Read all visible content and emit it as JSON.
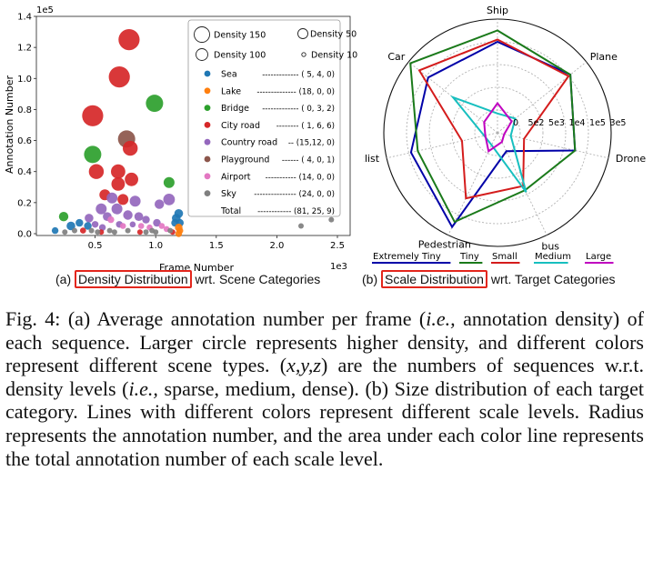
{
  "left_chart": {
    "exponent_y": "1e5",
    "exponent_x": "1e3",
    "xlabel": "Frame Number",
    "ylabel": "Annotation Number",
    "x_ticks": [
      "0.5",
      "1.0",
      "1.5",
      "2.0",
      "2.5"
    ],
    "y_ticks": [
      "0.0",
      "0.2",
      "0.4",
      "0.6",
      "0.8",
      "1.0",
      "1.2",
      "1.4"
    ],
    "size_legend": [
      "Density 150",
      "Density 50",
      "Density 100",
      "Density 10"
    ],
    "categories": [
      {
        "name": "Sea",
        "counts": "------------- ( 5,  4,  0)",
        "color": "#1f77b4"
      },
      {
        "name": "Lake",
        "counts": "-------------- (18,  0,  0)",
        "color": "#ff7f0e"
      },
      {
        "name": "Bridge",
        "counts": "------------- ( 0,  3,  2)",
        "color": "#2ca02c"
      },
      {
        "name": "City road",
        "counts": "-------- ( 1,  6,  6)",
        "color": "#d62728"
      },
      {
        "name": "Country road",
        "counts": "-- (15,12,  0)",
        "color": "#9467bd"
      },
      {
        "name": "Playground",
        "counts": "------ ( 4,  0,  1)",
        "color": "#8c564b"
      },
      {
        "name": "Airport",
        "counts": "----------- (14,  0,  0)",
        "color": "#e377c2"
      },
      {
        "name": "Sky",
        "counts": "--------------- (24,  0,  0)",
        "color": "#7f7f7f"
      },
      {
        "name": "Total",
        "counts": "------------ (81, 25,  9)",
        "color": ""
      }
    ],
    "subcaption_prefix": "(a)",
    "subcaption_boxed": "Density Distribution",
    "subcaption_suffix": "wrt. Scene Categories"
  },
  "chart_data": [
    {
      "type": "scatter",
      "title": "",
      "xlabel": "Frame Number (1e3)",
      "ylabel": "Annotation Number (1e5)",
      "xlim": [
        0.0,
        2.5
      ],
      "ylim": [
        0.0,
        1.4
      ],
      "points": [
        {
          "x": 0.78,
          "y": 1.25,
          "density": 150,
          "category": "City road"
        },
        {
          "x": 0.7,
          "y": 1.01,
          "density": 150,
          "category": "City road"
        },
        {
          "x": 0.48,
          "y": 0.76,
          "density": 150,
          "category": "City road"
        },
        {
          "x": 0.99,
          "y": 0.84,
          "density": 100,
          "category": "Bridge"
        },
        {
          "x": 0.76,
          "y": 0.61,
          "density": 100,
          "category": "Playground"
        },
        {
          "x": 0.48,
          "y": 0.51,
          "density": 100,
          "category": "Bridge"
        },
        {
          "x": 0.79,
          "y": 0.55,
          "density": 75,
          "category": "City road"
        },
        {
          "x": 0.51,
          "y": 0.4,
          "density": 75,
          "category": "City road"
        },
        {
          "x": 0.69,
          "y": 0.4,
          "density": 70,
          "category": "City road"
        },
        {
          "x": 0.69,
          "y": 0.32,
          "density": 60,
          "category": "City road"
        },
        {
          "x": 0.8,
          "y": 0.35,
          "density": 60,
          "category": "City road"
        },
        {
          "x": 1.11,
          "y": 0.33,
          "density": 40,
          "category": "Bridge"
        },
        {
          "x": 1.11,
          "y": 0.22,
          "density": 45,
          "category": "Country road"
        },
        {
          "x": 0.58,
          "y": 0.25,
          "density": 40,
          "category": "City road"
        },
        {
          "x": 0.64,
          "y": 0.23,
          "density": 40,
          "category": "Country road"
        },
        {
          "x": 0.73,
          "y": 0.22,
          "density": 40,
          "category": "City road"
        },
        {
          "x": 0.83,
          "y": 0.21,
          "density": 40,
          "category": "Country road"
        },
        {
          "x": 0.55,
          "y": 0.16,
          "density": 40,
          "category": "Country road"
        },
        {
          "x": 0.68,
          "y": 0.16,
          "density": 40,
          "category": "Country road"
        },
        {
          "x": 1.03,
          "y": 0.19,
          "density": 30,
          "category": "Country road"
        },
        {
          "x": 0.77,
          "y": 0.12,
          "density": 30,
          "category": "Country road"
        },
        {
          "x": 0.6,
          "y": 0.11,
          "density": 25,
          "category": "Country road"
        },
        {
          "x": 0.86,
          "y": 0.11,
          "density": 25,
          "category": "Country road"
        },
        {
          "x": 0.45,
          "y": 0.1,
          "density": 25,
          "category": "Country road"
        },
        {
          "x": 0.24,
          "y": 0.11,
          "density": 30,
          "category": "Bridge"
        },
        {
          "x": 1.19,
          "y": 0.13,
          "density": 25,
          "category": "Sea"
        },
        {
          "x": 1.17,
          "y": 0.1,
          "density": 25,
          "category": "Sea"
        },
        {
          "x": 1.16,
          "y": 0.07,
          "density": 20,
          "category": "Sea"
        },
        {
          "x": 1.2,
          "y": 0.07,
          "density": 20,
          "category": "Sea"
        },
        {
          "x": 1.19,
          "y": 0.04,
          "density": 20,
          "category": "Lake"
        },
        {
          "x": 1.2,
          "y": 0.02,
          "density": 15,
          "category": "Lake"
        },
        {
          "x": 0.3,
          "y": 0.05,
          "density": 25,
          "category": "Sea"
        },
        {
          "x": 0.37,
          "y": 0.07,
          "density": 20,
          "category": "Sea"
        },
        {
          "x": 0.44,
          "y": 0.05,
          "density": 20,
          "category": "Sea"
        },
        {
          "x": 0.17,
          "y": 0.02,
          "density": 15,
          "category": "Sea"
        },
        {
          "x": 0.92,
          "y": 0.09,
          "density": 20,
          "category": "Country road"
        },
        {
          "x": 1.01,
          "y": 0.07,
          "density": 20,
          "category": "Country road"
        },
        {
          "x": 0.5,
          "y": 0.06,
          "density": 15,
          "category": "Country road"
        },
        {
          "x": 0.56,
          "y": 0.04,
          "density": 15,
          "category": "Country road"
        },
        {
          "x": 0.7,
          "y": 0.06,
          "density": 15,
          "category": "Country road"
        },
        {
          "x": 0.63,
          "y": 0.09,
          "density": 15,
          "category": "Airport"
        },
        {
          "x": 0.73,
          "y": 0.05,
          "density": 12,
          "category": "Airport"
        },
        {
          "x": 0.88,
          "y": 0.05,
          "density": 12,
          "category": "Airport"
        },
        {
          "x": 0.95,
          "y": 0.04,
          "density": 12,
          "category": "Airport"
        },
        {
          "x": 1.05,
          "y": 0.05,
          "density": 12,
          "category": "Airport"
        },
        {
          "x": 1.09,
          "y": 0.03,
          "density": 12,
          "category": "Airport"
        },
        {
          "x": 0.81,
          "y": 0.06,
          "density": 12,
          "category": "Country road"
        },
        {
          "x": 0.4,
          "y": 0.02,
          "density": 12,
          "category": "City road"
        },
        {
          "x": 0.55,
          "y": 0.01,
          "density": 10,
          "category": "City road"
        },
        {
          "x": 0.87,
          "y": 0.01,
          "density": 10,
          "category": "City road"
        },
        {
          "x": 1.14,
          "y": 0.01,
          "density": 10,
          "category": "City road"
        },
        {
          "x": 1.19,
          "y": 0.0,
          "density": 15,
          "category": "Lake"
        },
        {
          "x": 0.33,
          "y": 0.02,
          "density": 10,
          "category": "Sky"
        },
        {
          "x": 0.47,
          "y": 0.02,
          "density": 10,
          "category": "Sky"
        },
        {
          "x": 0.62,
          "y": 0.02,
          "density": 10,
          "category": "Sky"
        },
        {
          "x": 0.77,
          "y": 0.02,
          "density": 10,
          "category": "Sky"
        },
        {
          "x": 0.97,
          "y": 0.02,
          "density": 10,
          "category": "Sky"
        },
        {
          "x": 1.12,
          "y": 0.02,
          "density": 10,
          "category": "Sky"
        },
        {
          "x": 2.2,
          "y": 0.05,
          "density": 10,
          "category": "Sky"
        },
        {
          "x": 2.45,
          "y": 0.09,
          "density": 10,
          "category": "Sky"
        },
        {
          "x": 0.25,
          "y": 0.01,
          "density": 10,
          "category": "Sky"
        },
        {
          "x": 0.52,
          "y": 0.01,
          "density": 10,
          "category": "Sky"
        },
        {
          "x": 0.66,
          "y": 0.01,
          "density": 10,
          "category": "Sky"
        },
        {
          "x": 0.92,
          "y": 0.01,
          "density": 10,
          "category": "Sky"
        },
        {
          "x": 1.0,
          "y": 0.01,
          "density": 10,
          "category": "Sky"
        }
      ]
    },
    {
      "type": "radar",
      "axes": [
        "Ship",
        "Plane",
        "Drone",
        "bus",
        "Pedestrian",
        "Cyclist",
        "Car"
      ],
      "radial_ticks": [
        "0",
        "5e2",
        "5e3",
        "1e4",
        "1e5",
        "3e5"
      ],
      "rmax": 5,
      "series": [
        {
          "name": "Extremely Tiny",
          "color": "#0000a8",
          "values": [
            4.0,
            4.1,
            3.5,
            0.9,
            4.6,
            3.9,
            3.9
          ]
        },
        {
          "name": "Tiny",
          "color": "#1a7a1a",
          "values": [
            4.5,
            4.1,
            3.5,
            2.8,
            4.35,
            3.6,
            4.9
          ]
        },
        {
          "name": "Small",
          "color": "#d41c1c",
          "values": [
            4.1,
            4.0,
            1.2,
            2.6,
            3.2,
            1.6,
            4.4
          ]
        },
        {
          "name": "Medium",
          "color": "#17bfbf",
          "values": [
            0.85,
            1.0,
            0.6,
            2.9,
            0.6,
            0.6,
            2.5
          ]
        },
        {
          "name": "Large",
          "color": "#c000c0",
          "values": [
            1.3,
            0.8,
            0.3,
            0.45,
            0.9,
            0.55,
            0.75
          ]
        }
      ]
    }
  ],
  "right_chart": {
    "axis_labels": [
      "Ship",
      "Plane",
      "Drone",
      "bus",
      "Pedestrian",
      "Cyclist",
      "Car"
    ],
    "radial_labels": [
      "0",
      "5e2",
      "5e3",
      "1e4",
      "1e5",
      "3e5"
    ],
    "legend": [
      {
        "name": "Extremely Tiny",
        "color": "#0000a8"
      },
      {
        "name": "Tiny",
        "color": "#1a7a1a"
      },
      {
        "name": "Small",
        "color": "#d41c1c"
      },
      {
        "name": "Medium",
        "color": "#17bfbf"
      },
      {
        "name": "Large",
        "color": "#c000c0"
      }
    ],
    "subcaption_prefix": "(b)",
    "subcaption_boxed": "Scale Distribution",
    "subcaption_suffix": "wrt. Target Categories"
  },
  "caption": {
    "p1": "Fig. 4: (a) Average annotation number per frame (",
    "ie1": "i.e.,",
    "p2": " annotation density) of each sequence. Larger circle represents higher density, and different colors represent different scene types. (",
    "xyz": "x,y,z",
    "p3": ") are the numbers of sequences w.r.t. density levels (",
    "ie2": "i.e.,",
    "p4": " sparse, medium, dense). (b) Size distribution of each target category. Lines with different colors represent different scale levels. Radius represents the annotation number, and the area under each color line represents the total annotation number of each scale level."
  }
}
